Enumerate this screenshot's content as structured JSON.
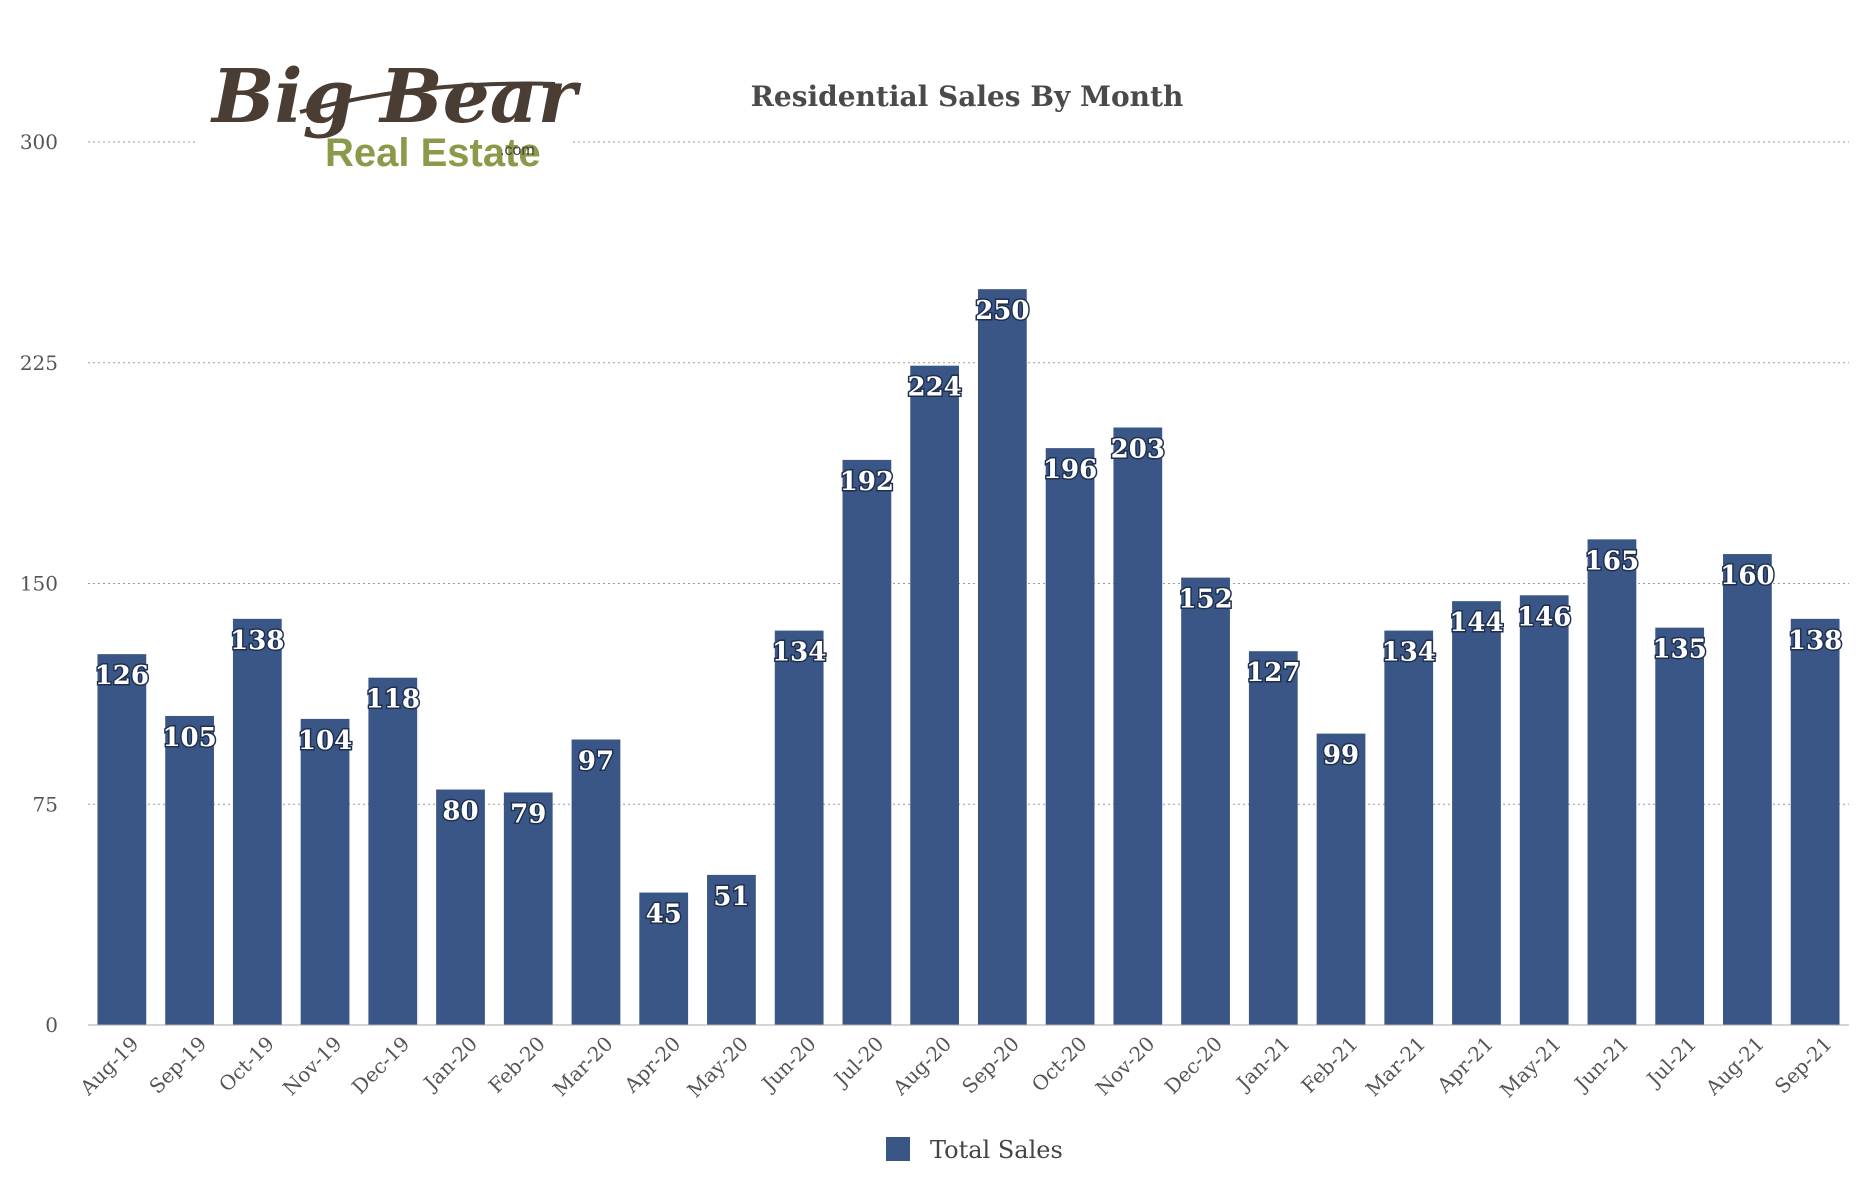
{
  "logo": {
    "line1": "Big Bear",
    "line2": "Real Estate",
    "suffix": ".com"
  },
  "chart_data": {
    "type": "bar",
    "title": "Residential Sales By Month",
    "xlabel": "",
    "ylabel": "",
    "ylim": [
      0,
      300
    ],
    "yticks": [
      0,
      75,
      150,
      225,
      300
    ],
    "grid": true,
    "legend_position": "bottom-center",
    "bar_color": "#3a5686",
    "categories": [
      "Aug-19",
      "Sep-19",
      "Oct-19",
      "Nov-19",
      "Dec-19",
      "Jan-20",
      "Feb-20",
      "Mar-20",
      "Apr-20",
      "May-20",
      "Jun-20",
      "Jul-20",
      "Aug-20",
      "Sep-20",
      "Oct-20",
      "Nov-20",
      "Dec-20",
      "Jan-21",
      "Feb-21",
      "Mar-21",
      "Apr-21",
      "May-21",
      "Jun-21",
      "Jul-21",
      "Aug-21",
      "Sep-21"
    ],
    "series": [
      {
        "name": "Total Sales",
        "values": [
          126,
          105,
          138,
          104,
          118,
          80,
          79,
          97,
          45,
          51,
          134,
          192,
          224,
          250,
          196,
          203,
          152,
          127,
          99,
          134,
          144,
          146,
          165,
          135,
          160,
          138
        ]
      }
    ]
  }
}
